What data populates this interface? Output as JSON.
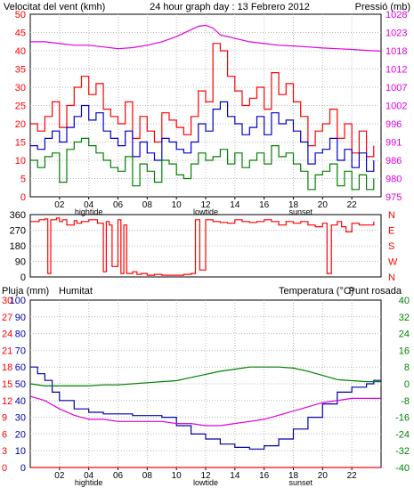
{
  "colors": {
    "wind_avg": "#0000cc",
    "wind_gust": "#ff0000",
    "wind_min": "#008000",
    "pressure": "#e000e0",
    "direction": "#ff0000",
    "rain": "#ff0000",
    "humidity": "#0000aa",
    "temperature": "#008000",
    "dewpoint": "#e000e0",
    "rain_axis": "#ff0000",
    "hum_axis": "#0000aa",
    "temp_axis": "#008000",
    "grid": "#b8b8b8",
    "frame_bg": "#ffffff",
    "plot_bg": "#ffffff"
  },
  "chart_data": [
    {
      "type": "line",
      "title": "24 hour graph day : 13 Febrero 2012",
      "ylabel_left": "Velocitat del vent (kmh)",
      "ylabel_right": "Pressió (mb)",
      "y_left_ticks": [
        "0",
        "5",
        "10",
        "15",
        "20",
        "25",
        "30",
        "35",
        "40",
        "45",
        "50"
      ],
      "y_left_range": [
        0,
        50
      ],
      "y_right_ticks": [
        "975",
        "980",
        "986",
        "991",
        "996",
        "1002",
        "1007",
        "1012",
        "1018",
        "1023",
        "1028"
      ],
      "y_right_range": [
        975,
        1028
      ],
      "x_ticks": [
        "02",
        "04",
        "06",
        "08",
        "10",
        "12",
        "14",
        "16",
        "18",
        "20",
        "22"
      ],
      "x_range": [
        0,
        24
      ],
      "x_tick_hours": [
        2,
        4,
        6,
        8,
        10,
        12,
        14,
        16,
        18,
        20,
        22
      ],
      "event_labels": [
        {
          "text": "hightide",
          "hour": 4
        },
        {
          "text": "lowtide",
          "hour": 12
        },
        {
          "text": "sunset",
          "hour": 18.5
        }
      ],
      "grid": true,
      "series": [
        {
          "key": "wind_gust",
          "x": [
            0,
            0.5,
            1,
            1.5,
            2,
            2.5,
            3,
            3.5,
            4,
            4.5,
            5,
            5.5,
            6,
            6.5,
            7,
            7.5,
            8,
            8.5,
            9,
            9.5,
            10,
            10.5,
            11,
            11.5,
            12,
            12.5,
            13,
            13.5,
            14,
            14.5,
            15,
            15.5,
            16,
            16.5,
            17,
            17.5,
            18,
            18.5,
            19,
            19.5,
            20,
            20.5,
            21,
            21.5,
            22,
            22.5,
            23,
            23.5
          ],
          "values": [
            20,
            18,
            22,
            26,
            19,
            25,
            30,
            33,
            28,
            31,
            24,
            22,
            20,
            26,
            16,
            22,
            18,
            15,
            23,
            21,
            19,
            17,
            22,
            29,
            26,
            42,
            40,
            33,
            29,
            25,
            27,
            30,
            24,
            34,
            28,
            31,
            26,
            22,
            14,
            18,
            20,
            24,
            16,
            20,
            12,
            18,
            11,
            14
          ]
        },
        {
          "key": "wind_avg",
          "x": [
            0,
            0.5,
            1,
            1.5,
            2,
            2.5,
            3,
            3.5,
            4,
            4.5,
            5,
            5.5,
            6,
            6.5,
            7,
            7.5,
            8,
            8.5,
            9,
            9.5,
            10,
            10.5,
            11,
            11.5,
            12,
            12.5,
            13,
            13.5,
            14,
            14.5,
            15,
            15.5,
            16,
            16.5,
            17,
            17.5,
            18,
            18.5,
            19,
            19.5,
            20,
            20.5,
            21,
            21.5,
            22,
            22.5,
            23,
            23.5
          ],
          "values": [
            14,
            13,
            16,
            18,
            15,
            19,
            22,
            25,
            21,
            23,
            18,
            16,
            14,
            18,
            11,
            15,
            12,
            10,
            16,
            15,
            13,
            12,
            15,
            20,
            18,
            24,
            26,
            22,
            20,
            17,
            19,
            22,
            17,
            23,
            20,
            21,
            18,
            15,
            9,
            12,
            13,
            16,
            10,
            13,
            8,
            12,
            7,
            10
          ]
        },
        {
          "key": "wind_min",
          "x": [
            0,
            0.5,
            1,
            1.5,
            2,
            2.5,
            3,
            3.5,
            4,
            4.5,
            5,
            5.5,
            6,
            6.5,
            7,
            7.5,
            8,
            8.5,
            9,
            9.5,
            10,
            10.5,
            11,
            11.5,
            12,
            12.5,
            13,
            13.5,
            14,
            14.5,
            15,
            15.5,
            16,
            16.5,
            17,
            17.5,
            18,
            18.5,
            19,
            19.5,
            20,
            20.5,
            21,
            21.5,
            22,
            22.5,
            23,
            23.5
          ],
          "values": [
            10,
            8,
            11,
            12,
            4,
            13,
            15,
            16,
            14,
            12,
            10,
            8,
            7,
            11,
            3,
            9,
            7,
            4,
            10,
            9,
            6,
            5,
            9,
            12,
            10,
            11,
            13,
            9,
            12,
            8,
            10,
            12,
            9,
            14,
            11,
            12,
            9,
            7,
            2,
            6,
            7,
            9,
            3,
            7,
            2,
            6,
            2,
            5
          ]
        },
        {
          "key": "pressure",
          "axis": "right",
          "x": [
            0,
            1,
            2,
            3,
            4,
            5,
            6,
            7,
            8,
            9,
            10,
            11,
            11.5,
            12,
            12.5,
            13,
            14,
            15,
            16,
            17,
            18,
            19,
            20,
            21,
            22,
            23,
            24
          ],
          "values": [
            1020,
            1020,
            1019.5,
            1019,
            1019,
            1018.5,
            1018,
            1018.3,
            1019,
            1020,
            1021.5,
            1023.5,
            1024.5,
            1024.8,
            1024,
            1022,
            1021,
            1020,
            1019.5,
            1019,
            1018.8,
            1018.5,
            1018.2,
            1018,
            1017.8,
            1017.5,
            1017.3
          ]
        }
      ]
    },
    {
      "type": "line",
      "title": "",
      "y_left_ticks": [
        "0",
        "90",
        "180",
        "270",
        "360"
      ],
      "y_left_range": [
        0,
        360
      ],
      "y_right_ticks": [
        "N",
        "W",
        "S",
        "E",
        "N"
      ],
      "x_range": [
        0,
        24
      ],
      "grid": true,
      "series": [
        {
          "key": "direction",
          "x": [
            0,
            0.6,
            1,
            1.2,
            1.4,
            1.8,
            2,
            2.2,
            2.5,
            3,
            3.2,
            3.5,
            4,
            4.3,
            4.6,
            5,
            5.2,
            5.4,
            5.6,
            6,
            6.2,
            6.4,
            6.6,
            7,
            7.3,
            7.6,
            8,
            8.5,
            9,
            9.5,
            10,
            10.5,
            11,
            11.3,
            11.6,
            12,
            12.2,
            12.5,
            13,
            13.5,
            14,
            14.5,
            15,
            15.5,
            16,
            16.5,
            17,
            17.5,
            18,
            18.5,
            19,
            19.5,
            20,
            20.3,
            20.6,
            21,
            21.3,
            21.6,
            22,
            22.5,
            23,
            23.5
          ],
          "values": [
            320,
            330,
            335,
            20,
            330,
            340,
            320,
            330,
            300,
            325,
            310,
            320,
            330,
            330,
            310,
            30,
            320,
            300,
            60,
            330,
            20,
            300,
            20,
            30,
            15,
            20,
            10,
            15,
            10,
            10,
            10,
            15,
            20,
            330,
            40,
            330,
            330,
            320,
            315,
            310,
            330,
            320,
            315,
            320,
            330,
            320,
            300,
            320,
            310,
            320,
            300,
            290,
            310,
            20,
            300,
            320,
            290,
            260,
            310,
            300,
            300,
            320
          ]
        }
      ]
    },
    {
      "type": "line",
      "title": "",
      "ylabel_left_1": "Pluja (mm)",
      "ylabel_left_2": "Humitat",
      "ylabel_right": "Temperatura (°C)",
      "ylabel_right_2": "Punt rosada",
      "y_rain_ticks": [
        "0",
        "3",
        "6",
        "9",
        "12",
        "15",
        "18",
        "21",
        "24",
        "27",
        "30"
      ],
      "y_rain_range": [
        0,
        30
      ],
      "y_hum_ticks": [
        "0",
        "10",
        "20",
        "30",
        "40",
        "50",
        "60",
        "70",
        "80",
        "90",
        "100"
      ],
      "y_hum_range": [
        0,
        100
      ],
      "y_temp_ticks": [
        "-40",
        "-32",
        "-24",
        "-16",
        "-8",
        "0",
        "8",
        "16",
        "24",
        "32",
        "40"
      ],
      "y_temp_range": [
        -40,
        40
      ],
      "x_ticks": [
        "02",
        "04",
        "06",
        "08",
        "10",
        "12",
        "14",
        "16",
        "18",
        "20",
        "22"
      ],
      "x_range": [
        0,
        24
      ],
      "event_labels": [
        {
          "text": "hightide",
          "hour": 4
        },
        {
          "text": "lowtide",
          "hour": 12
        },
        {
          "text": "sunset",
          "hour": 18.5
        }
      ],
      "grid": true,
      "series": [
        {
          "key": "humidity",
          "axis": "hum",
          "x": [
            0,
            0.5,
            1,
            1.5,
            2,
            3,
            4,
            5,
            6,
            7,
            8,
            9,
            10,
            11,
            12,
            13,
            14,
            15,
            16,
            17,
            18,
            19,
            20,
            21,
            22,
            23,
            23.5,
            24
          ],
          "values": [
            60,
            56,
            52,
            45,
            40,
            35,
            33,
            32,
            32,
            31,
            31,
            30,
            25,
            20,
            17,
            14,
            12,
            11,
            13,
            17,
            23,
            30,
            38,
            45,
            48,
            50,
            52,
            52
          ]
        },
        {
          "key": "temperature",
          "axis": "temp",
          "x": [
            0,
            1,
            2,
            3,
            4,
            5,
            6,
            7,
            8,
            9,
            10,
            11,
            12,
            13,
            14,
            15,
            16,
            17,
            18,
            19,
            20,
            21,
            22,
            23,
            24
          ],
          "values": [
            0,
            -1,
            -1,
            -1,
            -1,
            -0.5,
            -0.5,
            0,
            0.5,
            1,
            1.5,
            3,
            4.5,
            6,
            7,
            8,
            8,
            8,
            7.5,
            6,
            4,
            2,
            1.5,
            1,
            1
          ]
        },
        {
          "key": "dewpoint",
          "axis": "temp",
          "x": [
            0,
            1,
            2,
            3,
            4,
            5,
            6,
            7,
            8,
            9,
            10,
            11,
            12,
            13,
            14,
            15,
            16,
            17,
            18,
            19,
            20,
            21,
            22,
            23,
            24
          ],
          "values": [
            -6,
            -8,
            -12,
            -15,
            -17,
            -17,
            -18,
            -18,
            -18,
            -18,
            -19,
            -19,
            -20,
            -20,
            -19,
            -18,
            -17,
            -15,
            -13,
            -11,
            -9,
            -8,
            -7,
            -7,
            -7
          ]
        },
        {
          "key": "rain",
          "axis": "rain",
          "x": [
            0,
            24
          ],
          "values": [
            0,
            0
          ]
        }
      ]
    }
  ]
}
